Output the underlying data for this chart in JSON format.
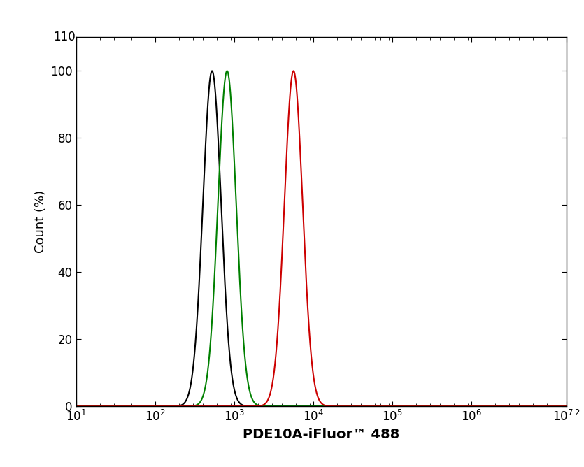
{
  "xlabel": "PDE10A-iFluor™ 488",
  "ylabel": "Count (%)",
  "xlim_log": [
    1,
    7.2
  ],
  "ylim": [
    0,
    110
  ],
  "yticks": [
    0,
    20,
    40,
    60,
    80,
    100
  ],
  "ytick_labels": [
    "0",
    "20",
    "40",
    "60",
    "80",
    "100"
  ],
  "xtick_values": [
    1,
    2,
    3,
    4,
    5,
    6,
    7.2
  ],
  "curves": [
    {
      "color": "#000000",
      "peak_log": 2.72,
      "sigma_log": 0.115,
      "peak_height": 100
    },
    {
      "color": "#008000",
      "peak_log": 2.91,
      "sigma_log": 0.115,
      "peak_height": 100
    },
    {
      "color": "#cc0000",
      "peak_log": 3.75,
      "sigma_log": 0.115,
      "peak_height": 100
    }
  ],
  "background_color": "#ffffff",
  "linewidth": 1.5,
  "xlabel_fontsize": 14,
  "ylabel_fontsize": 13,
  "tick_fontsize": 12
}
